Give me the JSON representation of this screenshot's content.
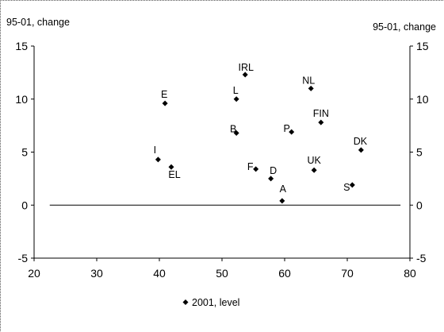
{
  "chart_data": {
    "type": "scatter",
    "title": "",
    "ylabel_left": "95-01, change",
    "ylabel_right": "95-01, change",
    "xlabel": "",
    "xlim": [
      20,
      80
    ],
    "ylim": [
      -5,
      15
    ],
    "x_ticks": [
      20,
      30,
      40,
      50,
      60,
      70,
      80
    ],
    "y_ticks": [
      -5,
      0,
      5,
      10,
      15
    ],
    "reference_line": {
      "y": 0,
      "x_from": 22.5,
      "x_to": 78.5
    },
    "series": [
      {
        "name": "2001, level",
        "color": "#000000",
        "marker": "diamond",
        "points": [
          {
            "label": "IRL",
            "x": 53.7,
            "y": 12.3
          },
          {
            "label": "NL",
            "x": 64.2,
            "y": 11.0
          },
          {
            "label": "E",
            "x": 40.9,
            "y": 9.6
          },
          {
            "label": "L",
            "x": 52.3,
            "y": 10.0
          },
          {
            "label": "FIN",
            "x": 65.8,
            "y": 7.8
          },
          {
            "label": "B",
            "x": 52.3,
            "y": 6.8
          },
          {
            "label": "P",
            "x": 61.1,
            "y": 6.9
          },
          {
            "label": "DK",
            "x": 72.2,
            "y": 5.2
          },
          {
            "label": "I",
            "x": 39.8,
            "y": 4.3
          },
          {
            "label": "EL",
            "x": 41.9,
            "y": 3.6
          },
          {
            "label": "F",
            "x": 55.4,
            "y": 3.4
          },
          {
            "label": "UK",
            "x": 64.7,
            "y": 3.3
          },
          {
            "label": "D",
            "x": 57.8,
            "y": 2.5
          },
          {
            "label": "S",
            "x": 70.8,
            "y": 1.9
          },
          {
            "label": "A",
            "x": 59.6,
            "y": 0.4
          }
        ]
      }
    ],
    "grid": false,
    "legend_position": "bottom-left"
  }
}
